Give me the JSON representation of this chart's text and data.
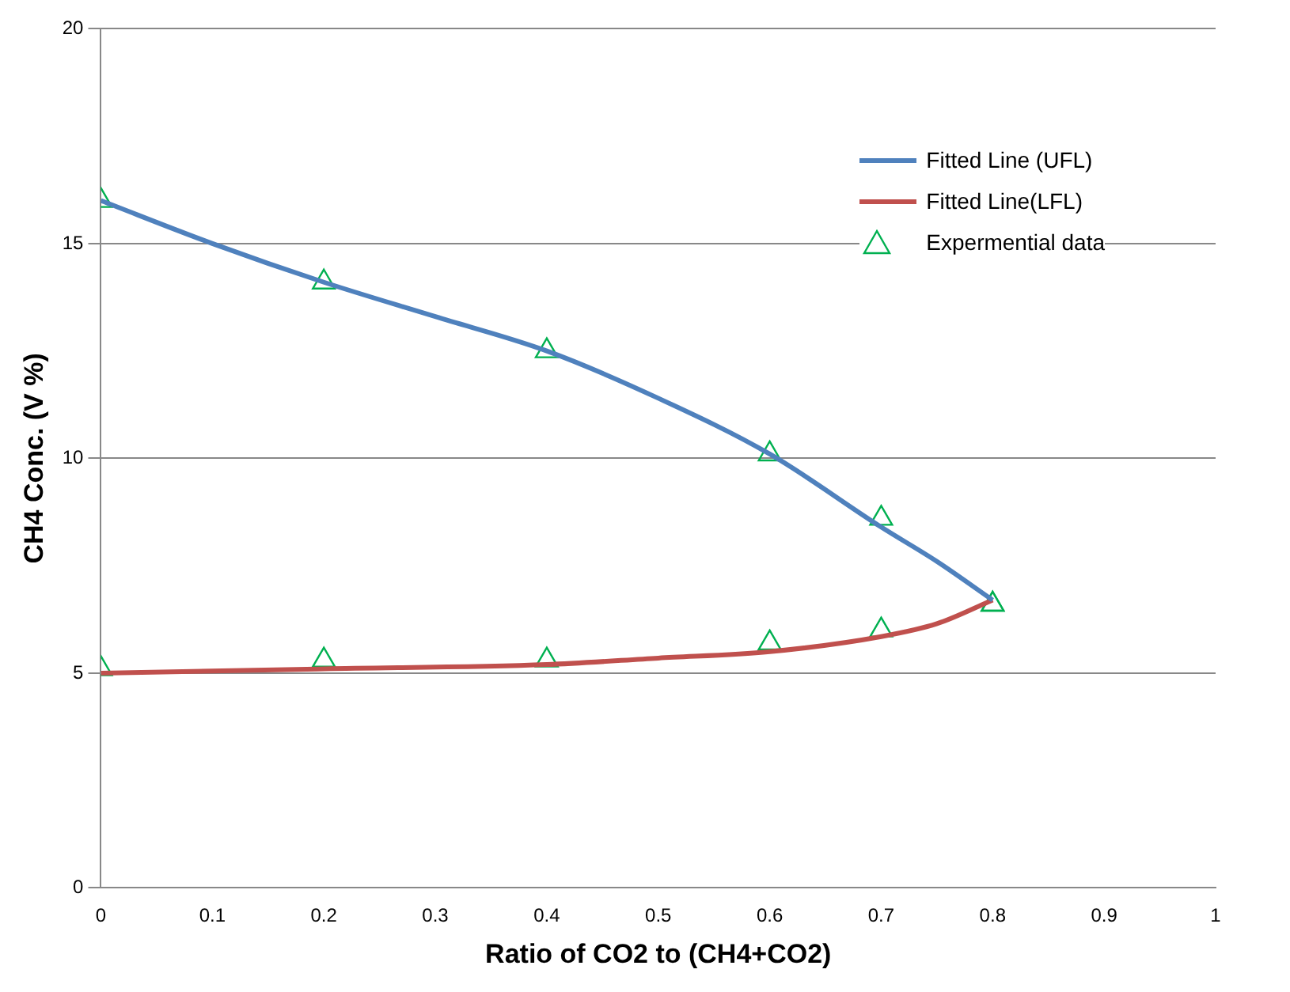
{
  "chart_data": {
    "type": "line",
    "xlabel": "Ratio of CO2 to (CH4+CO2)",
    "ylabel": "CH4 Conc. (V %)",
    "xlim": [
      0,
      1
    ],
    "ylim": [
      0,
      20
    ],
    "xticks": [
      0,
      0.1,
      0.2,
      0.3,
      0.4,
      0.5,
      0.6,
      0.7,
      0.8,
      0.9,
      1
    ],
    "yticks": [
      0,
      5,
      10,
      15,
      20
    ],
    "grid": "y",
    "legend": "top right",
    "line_style": "solid",
    "series": [
      {
        "name": "Fitted Line (UFL)",
        "marker": "none",
        "color": "#4f81bd",
        "x": [
          0,
          0.1,
          0.2,
          0.3,
          0.4,
          0.5,
          0.6,
          0.7,
          0.75,
          0.8
        ],
        "values": [
          16,
          15.0,
          14.1,
          13.3,
          12.5,
          11.4,
          10.1,
          8.4,
          7.6,
          6.7
        ]
      },
      {
        "name": "Fitted Line(LFL)",
        "marker": "none",
        "color": "#c0504d",
        "x": [
          0,
          0.2,
          0.4,
          0.5,
          0.6,
          0.7,
          0.75,
          0.8
        ],
        "values": [
          5.0,
          5.1,
          5.2,
          5.35,
          5.5,
          5.85,
          6.15,
          6.7
        ]
      },
      {
        "name": "Expermential data",
        "type": "scatter",
        "marker": "triangle",
        "color": "#00b050",
        "x": [
          0,
          0.2,
          0.4,
          0.6,
          0.7,
          0.8,
          0,
          0.2,
          0.4,
          0.6,
          0.7,
          0.8
        ],
        "values": [
          16.0,
          14.1,
          12.5,
          10.1,
          8.6,
          6.6,
          5.1,
          5.3,
          5.3,
          5.7,
          6.0,
          6.6
        ]
      }
    ]
  }
}
